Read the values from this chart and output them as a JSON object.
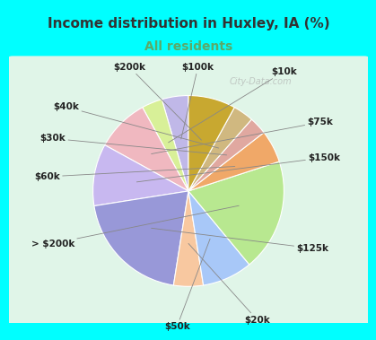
{
  "title": "Income distribution in Huxley, IA (%)",
  "subtitle": "All residents",
  "background_color": "#00FFFF",
  "chart_bg_top": "#e0f5e8",
  "chart_bg_bot": "#d8f0e0",
  "title_fontsize": 11,
  "title_color": "#333333",
  "subtitle_fontsize": 10,
  "subtitle_color": "#5aaa6a",
  "labels": [
    "$100k",
    "$10k",
    "$75k",
    "$150k",
    "$125k",
    "$20k",
    "$50k",
    "> $200k",
    "$60k",
    "$30k",
    "$40k",
    "$200k"
  ],
  "values": [
    4.5,
    3.5,
    9.0,
    10.5,
    20.0,
    5.0,
    8.5,
    19.0,
    5.5,
    3.0,
    3.5,
    8.0
  ],
  "colors": [
    "#c0b8e8",
    "#d8f098",
    "#f0b8c0",
    "#c8b8f0",
    "#9898d8",
    "#f8c8a0",
    "#a8c8f8",
    "#b8e890",
    "#f0a868",
    "#e0a8a0",
    "#d0b880",
    "#c8a830"
  ],
  "startangle": 90,
  "label_fontsize": 7.5,
  "watermark": "City-Data.com",
  "watermark_color": "#aaaaaa"
}
